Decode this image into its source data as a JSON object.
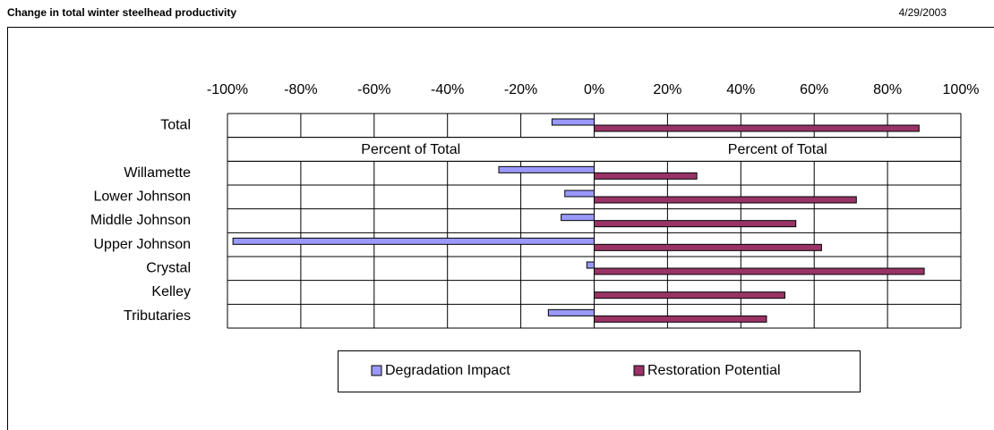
{
  "chart_data": {
    "type": "bar",
    "orientation": "horizontal",
    "title": "Change in total winter steelhead productivity",
    "date": "4/29/2003",
    "categories": [
      "Total",
      null,
      "Willamette",
      "Lower Johnson",
      "Middle Johnson",
      "Upper Johnson",
      "Crystal",
      "Kelley",
      "Tributaries"
    ],
    "band_labels": [
      "Percent of Total",
      "Percent of Total"
    ],
    "series": [
      {
        "name": "Degradation Impact",
        "color": "#9999ff",
        "values": [
          -11.5,
          null,
          -26,
          -8,
          -9,
          -98.5,
          -2,
          0,
          -12.5
        ]
      },
      {
        "name": "Restoration Potential",
        "color": "#993366",
        "values": [
          88.6,
          null,
          28,
          71.5,
          55,
          62,
          90,
          52,
          47
        ]
      }
    ],
    "xlim": [
      -100,
      100
    ],
    "xticks": [
      {
        "value": -100,
        "label": "-100%"
      },
      {
        "value": -80,
        "label": "-80%"
      },
      {
        "value": -60,
        "label": "-60%"
      },
      {
        "value": -40,
        "label": "-40%"
      },
      {
        "value": -20,
        "label": "-20%"
      },
      {
        "value": 0,
        "label": "0%"
      },
      {
        "value": 20,
        "label": "20%"
      },
      {
        "value": 40,
        "label": "40%"
      },
      {
        "value": 60,
        "label": "60%"
      },
      {
        "value": 80,
        "label": "80%"
      },
      {
        "value": 100,
        "label": "100%"
      }
    ],
    "grid": true,
    "legend": "bottom"
  }
}
